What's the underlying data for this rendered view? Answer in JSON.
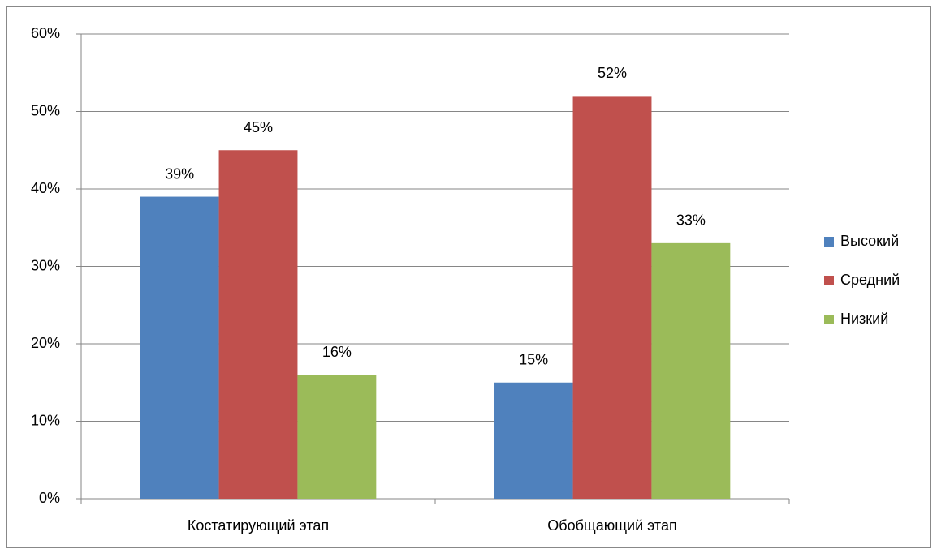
{
  "chart_data": {
    "type": "bar",
    "categories": [
      "Костатирующий этап",
      "Обобщающий этап"
    ],
    "series": [
      {
        "name": "Высокий",
        "color": "#4f81bd",
        "values": [
          39,
          15
        ],
        "value_labels": [
          "39%",
          "15%"
        ]
      },
      {
        "name": "Средний",
        "color": "#c0504d",
        "values": [
          45,
          52
        ],
        "value_labels": [
          "45%",
          "52%"
        ]
      },
      {
        "name": "Низкий",
        "color": "#9bbb59",
        "values": [
          16,
          33
        ],
        "value_labels": [
          "16%",
          "33%"
        ]
      }
    ],
    "ylim": [
      0,
      60
    ],
    "yticks": [
      {
        "value": 0,
        "label": "0%"
      },
      {
        "value": 10,
        "label": "10%"
      },
      {
        "value": 20,
        "label": "20%"
      },
      {
        "value": 30,
        "label": "30%"
      },
      {
        "value": 40,
        "label": "40%"
      },
      {
        "value": 50,
        "label": "50%"
      },
      {
        "value": 60,
        "label": "60%"
      }
    ],
    "grid": true,
    "legend": "right"
  }
}
